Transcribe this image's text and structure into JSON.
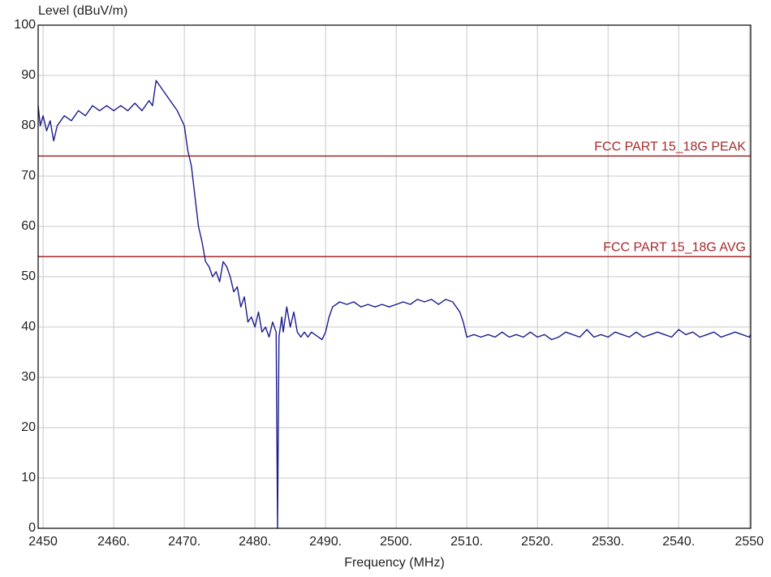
{
  "chart_data": {
    "type": "line",
    "y_label": "Level (dBuV/m)",
    "x_label": "Frequency (MHz)",
    "xlim": [
      2449.3,
      2550.2
    ],
    "ylim": [
      0,
      100
    ],
    "xticks": [
      {
        "value": 2450,
        "label": "2450"
      },
      {
        "value": 2460,
        "label": "2460."
      },
      {
        "value": 2470,
        "label": "2470."
      },
      {
        "value": 2480,
        "label": "2480."
      },
      {
        "value": 2490,
        "label": "2490."
      },
      {
        "value": 2500,
        "label": "2500."
      },
      {
        "value": 2510,
        "label": "2510."
      },
      {
        "value": 2520,
        "label": "2520."
      },
      {
        "value": 2530,
        "label": "2530."
      },
      {
        "value": 2540,
        "label": "2540."
      },
      {
        "value": 2550,
        "label": "2550"
      }
    ],
    "yticks": [
      0,
      10,
      20,
      30,
      40,
      50,
      60,
      70,
      80,
      90,
      100
    ],
    "grid": true,
    "limit_lines": [
      {
        "name": "FCC PART 15_18G PEAK",
        "value": 74,
        "color": "#a52a2a"
      },
      {
        "name": "FCC PART 15_18G AVG",
        "value": 54,
        "color": "#a52a2a"
      }
    ],
    "series": [
      {
        "color": "#1c1c8c",
        "x": [
          2449.3,
          2449.6,
          2450,
          2450.5,
          2451,
          2451.5,
          2452,
          2452.5,
          2453,
          2454,
          2455,
          2456,
          2457,
          2458,
          2459,
          2460,
          2461,
          2462,
          2463,
          2464,
          2465,
          2465.5,
          2466,
          2466.5,
          2467,
          2468,
          2469,
          2470,
          2470.5,
          2471,
          2471.5,
          2472,
          2472.5,
          2473,
          2473.5,
          2474,
          2474.5,
          2475,
          2475.5,
          2476,
          2476.5,
          2477,
          2477.5,
          2478,
          2478.5,
          2479,
          2479.5,
          2480,
          2480.5,
          2481,
          2481.5,
          2482,
          2482.5,
          2483,
          2483.2,
          2483.4,
          2483.8,
          2484,
          2484.5,
          2485,
          2485.5,
          2486,
          2486.5,
          2487,
          2487.5,
          2488,
          2489,
          2489.5,
          2490,
          2490.5,
          2491,
          2492,
          2493,
          2494,
          2495,
          2496,
          2497,
          2498,
          2499,
          2500,
          2501,
          2502,
          2503,
          2504,
          2505,
          2506,
          2507,
          2508,
          2509,
          2509.5,
          2510,
          2511,
          2512,
          2513,
          2514,
          2515,
          2516,
          2517,
          2518,
          2519,
          2520,
          2521,
          2522,
          2523,
          2524,
          2525,
          2526,
          2527,
          2528,
          2529,
          2530,
          2531,
          2532,
          2533,
          2534,
          2535,
          2536,
          2537,
          2538,
          2539,
          2540,
          2541,
          2542,
          2543,
          2544,
          2545,
          2546,
          2547,
          2548,
          2549,
          2550,
          2550.2
        ],
        "values": [
          84,
          80,
          82,
          79,
          81,
          77,
          80,
          81,
          82,
          81,
          83,
          82,
          84,
          83,
          84,
          83,
          84,
          83,
          84.5,
          83,
          85,
          84,
          89,
          88,
          87,
          85,
          83,
          80,
          75,
          72,
          66,
          60,
          57,
          53,
          52,
          50,
          51,
          49,
          53,
          52,
          50,
          47,
          48,
          44,
          46,
          41,
          42,
          40,
          43,
          39,
          40,
          38,
          41,
          39,
          0,
          38,
          42,
          39,
          44,
          40,
          43,
          39,
          38,
          39,
          38,
          39,
          38,
          37.5,
          39,
          42,
          44,
          45,
          44.5,
          45,
          44,
          44.5,
          44,
          44.5,
          44,
          44.5,
          45,
          44.5,
          45.5,
          45,
          45.5,
          44.5,
          45.5,
          45,
          43,
          41,
          38,
          38.5,
          38,
          38.5,
          38,
          39,
          38,
          38.5,
          38,
          39,
          38,
          38.5,
          37.5,
          38,
          39,
          38.5,
          38,
          39.5,
          38,
          38.5,
          38,
          39,
          38.5,
          38,
          39,
          38,
          38.5,
          39,
          38.5,
          38,
          39.5,
          38.5,
          39,
          38,
          38.5,
          39,
          38,
          38.5,
          39,
          38.5,
          38,
          38.5
        ]
      }
    ]
  }
}
